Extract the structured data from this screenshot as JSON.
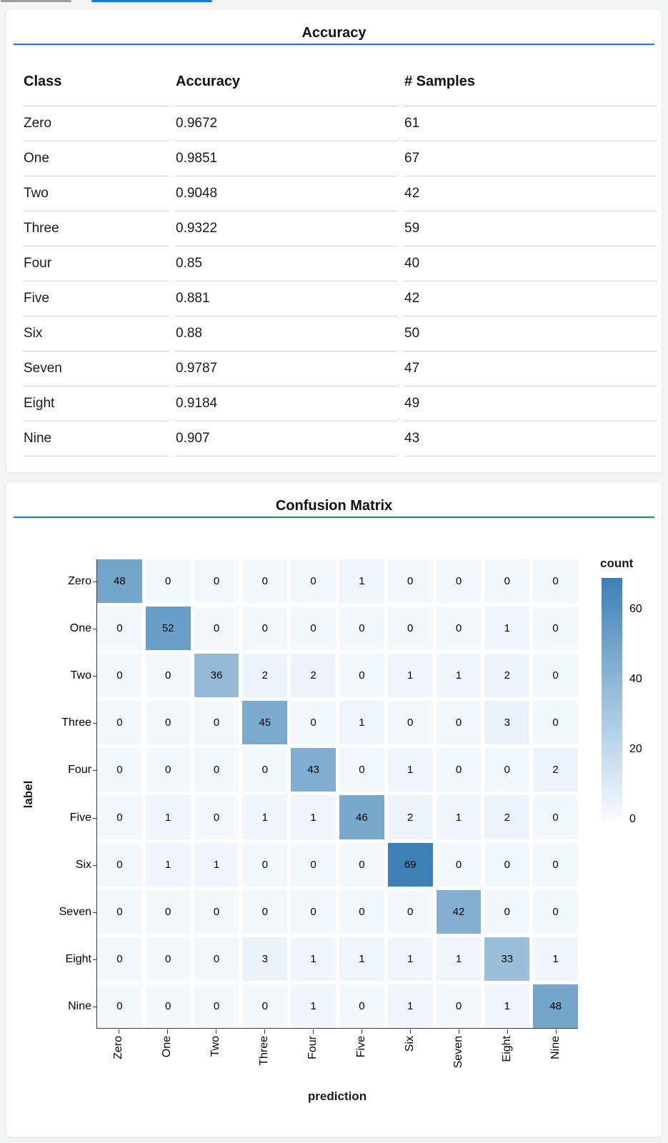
{
  "tabs": {
    "inactive_indicator_color": "#9e9e9e",
    "active_indicator_color": "#1a73e8"
  },
  "theme": {
    "divider_color": "#1a73e8",
    "page_bg": "#f3f4f5",
    "card_bg": "#ffffff",
    "axis_color": "#3a3a3a"
  },
  "chart_data": [
    {
      "type": "table",
      "title": "Accuracy",
      "columns": [
        "Class",
        "Accuracy",
        "# Samples"
      ],
      "rows": [
        [
          "Zero",
          "0.9672",
          "61"
        ],
        [
          "One",
          "0.9851",
          "67"
        ],
        [
          "Two",
          "0.9048",
          "42"
        ],
        [
          "Three",
          "0.9322",
          "59"
        ],
        [
          "Four",
          "0.85",
          "40"
        ],
        [
          "Five",
          "0.881",
          "42"
        ],
        [
          "Six",
          "0.88",
          "50"
        ],
        [
          "Seven",
          "0.9787",
          "47"
        ],
        [
          "Eight",
          "0.9184",
          "49"
        ],
        [
          "Nine",
          "0.907",
          "43"
        ]
      ]
    },
    {
      "type": "heatmap",
      "title": "Confusion Matrix",
      "xlabel": "prediction",
      "ylabel": "label",
      "x_categories": [
        "Zero",
        "One",
        "Two",
        "Three",
        "Four",
        "Five",
        "Six",
        "Seven",
        "Eight",
        "Nine"
      ],
      "y_categories": [
        "Zero",
        "One",
        "Two",
        "Three",
        "Four",
        "Five",
        "Six",
        "Seven",
        "Eight",
        "Nine"
      ],
      "matrix": [
        [
          48,
          0,
          0,
          0,
          0,
          1,
          0,
          0,
          0,
          0
        ],
        [
          0,
          52,
          0,
          0,
          0,
          0,
          0,
          0,
          1,
          0
        ],
        [
          0,
          0,
          36,
          2,
          2,
          0,
          1,
          1,
          2,
          0
        ],
        [
          0,
          0,
          0,
          45,
          0,
          1,
          0,
          0,
          3,
          0
        ],
        [
          0,
          0,
          0,
          0,
          43,
          0,
          1,
          0,
          0,
          2
        ],
        [
          0,
          1,
          0,
          1,
          1,
          46,
          2,
          1,
          2,
          0
        ],
        [
          0,
          1,
          1,
          0,
          0,
          0,
          69,
          0,
          0,
          0
        ],
        [
          0,
          0,
          0,
          0,
          0,
          0,
          0,
          42,
          0,
          0
        ],
        [
          0,
          0,
          0,
          3,
          1,
          1,
          1,
          1,
          33,
          1
        ],
        [
          0,
          0,
          0,
          0,
          1,
          0,
          1,
          0,
          1,
          48
        ]
      ],
      "legend": {
        "title": "count",
        "ticks": [
          0,
          20,
          40,
          60
        ],
        "domain": [
          0,
          69
        ],
        "position": "right"
      },
      "color_range": [
        "#f3f8fc",
        "#3c80b6"
      ],
      "grid": false
    }
  ]
}
